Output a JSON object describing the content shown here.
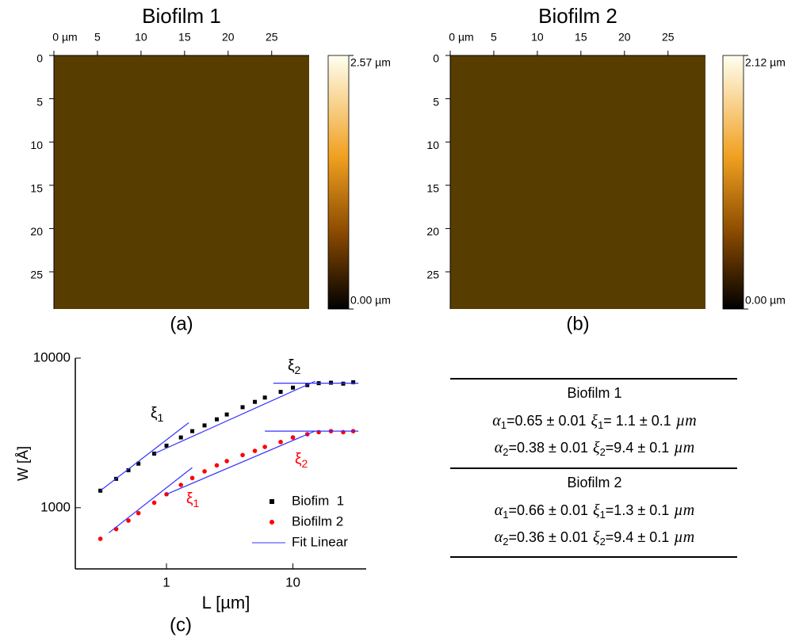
{
  "chart_data": [
    {
      "type": "image",
      "title": "Biofilm 1",
      "panel_label": "(a)",
      "xlim": [
        0,
        29.3
      ],
      "xticks": [
        {
          "value": 0,
          "label": "0 µm"
        },
        5,
        10,
        15,
        20,
        25
      ],
      "ylim": [
        0,
        29.3
      ],
      "yticks": [
        0,
        5,
        10,
        15,
        20,
        25
      ],
      "colorbar": {
        "lim": [
          0,
          2.57
        ],
        "ticks": [
          {
            "value": 0,
            "label": "0.00 µm"
          },
          {
            "value": 2.57,
            "label": "2.57 µm"
          }
        ]
      }
    },
    {
      "type": "image",
      "title": "Biofilm 2",
      "panel_label": "(b)",
      "xlim": [
        0,
        29.3
      ],
      "xticks": [
        {
          "value": 0,
          "label": "0 µm"
        },
        5,
        10,
        15,
        20,
        25
      ],
      "ylim": [
        0,
        29.3
      ],
      "yticks": [
        0,
        5,
        10,
        15,
        20,
        25
      ],
      "colorbar": {
        "lim": [
          0,
          2.12
        ],
        "ticks": [
          {
            "value": 0,
            "label": "0.00 µm"
          },
          {
            "value": 2.12,
            "label": "2.12 µm"
          }
        ]
      }
    },
    {
      "type": "scatter",
      "panel_label": "(c)",
      "x_label": "L [µm]",
      "y_label": "W [Å]",
      "xscale": "log",
      "yscale": "log",
      "xlim": [
        0.19,
        38
      ],
      "xticks": [
        1,
        10
      ],
      "ylim": [
        390,
        10000
      ],
      "yticks": [
        1000,
        10000
      ],
      "x": [
        0.3,
        0.4,
        0.5,
        0.6,
        0.8,
        1,
        1.3,
        1.6,
        2,
        2.5,
        3,
        4,
        5,
        6,
        8,
        10,
        13,
        16,
        20,
        25,
        30
      ],
      "series": [
        {
          "name": "Biofim  1",
          "color": "#000000",
          "marker": "square",
          "values": [
            1300,
            1560,
            1780,
            1970,
            2300,
            2600,
            2950,
            3250,
            3550,
            3900,
            4200,
            4700,
            5100,
            5450,
            5950,
            6350,
            6600,
            6800,
            6850,
            6750,
            6900
          ]
        },
        {
          "name": "Biofilm 2",
          "color": "#ff0000",
          "marker": "circle",
          "values": [
            620,
            720,
            820,
            920,
            1080,
            1230,
            1420,
            1580,
            1750,
            1920,
            2050,
            2250,
            2400,
            2550,
            2750,
            2950,
            3100,
            3200,
            3250,
            3200,
            3250
          ]
        },
        {
          "name": "Fit Linear",
          "color": "#3333ff",
          "marker": "line",
          "segments": [
            {
              "x": [
                0.3,
                1.5
              ],
              "values": [
                1300,
                3700
              ]
            },
            {
              "x": [
                0.8,
                15
              ],
              "values": [
                2300,
                7010
              ]
            },
            {
              "x": [
                7,
                33
              ],
              "values": [
                6800,
                6800
              ]
            },
            {
              "x": [
                0.35,
                1.6
              ],
              "values": [
                680,
                1855
              ]
            },
            {
              "x": [
                1,
                15
              ],
              "values": [
                1230,
                3260
              ]
            },
            {
              "x": [
                6,
                33
              ],
              "values": [
                3250,
                3250
              ]
            }
          ]
        }
      ],
      "annotations": [
        {
          "text": "ξ",
          "subscript": "1",
          "color": "#000000"
        },
        {
          "text": "ξ",
          "subscript": "2",
          "color": "#000000"
        },
        {
          "text": "ξ",
          "subscript": "1",
          "color": "#ff0000"
        },
        {
          "text": "ξ",
          "subscript": "2",
          "color": "#ff0000"
        }
      ]
    }
  ],
  "table": {
    "groups": [
      {
        "title": "Biofilm 1",
        "rows": [
          [
            "α",
            "1",
            "=0.65 ± 0.01",
            "ξ",
            "1",
            "= 1.1 ± 0.1",
            "µm"
          ],
          [
            "α",
            "2",
            "=0.38 ± 0.01",
            "ξ",
            "2",
            "=9.4 ± 0.1",
            "µm"
          ]
        ]
      },
      {
        "title": "Biofilm 2",
        "rows": [
          [
            "α",
            "1",
            "=0.66 ± 0.01",
            "ξ",
            "1",
            "=1.3 ± 0.1",
            "µm"
          ],
          [
            "α",
            "2",
            "=0.36 ± 0.01",
            "ξ",
            "2",
            "=9.4 ± 0.1",
            "µm"
          ]
        ]
      }
    ]
  }
}
